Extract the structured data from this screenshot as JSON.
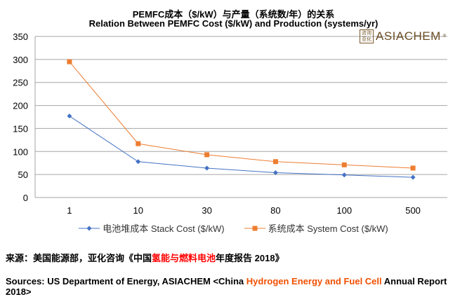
{
  "title_cn": "PEMFC成本（$/kW）与产量（系统数/年）的关系",
  "title_en": "Relation Between PEMFC Cost ($/kW) and Production (systems/yr)",
  "logo": {
    "seal": "咨询亚化",
    "name": "ASIACHEM",
    "mark": "®"
  },
  "chart_data": {
    "type": "line",
    "categories": [
      "1",
      "10",
      "30",
      "80",
      "100",
      "500"
    ],
    "ylim": [
      0,
      350
    ],
    "yticks": [
      0,
      50,
      100,
      150,
      200,
      250,
      300,
      350
    ],
    "grid": true,
    "legend": "bottom",
    "series": [
      {
        "name": "电池堆成本 Stack Cost ($/kW)",
        "values": [
          177,
          78,
          64,
          54,
          49,
          44
        ],
        "color": "#4472c4",
        "marker": "diamond"
      },
      {
        "name": "系统成本 System Cost ($/kW)",
        "values": [
          295,
          117,
          93,
          78,
          71,
          64
        ],
        "color": "#ed7d31",
        "marker": "square"
      }
    ]
  },
  "source_cn": {
    "a": "来源：美国能源部，亚化咨询《中国",
    "b": "氢能与燃料电池",
    "c": "年度报告 2018》"
  },
  "source_en": {
    "a": "Sources: US Department of Energy, ASIACHEM <China ",
    "b": "Hydrogen Energy and Fuel Cell",
    "c": " Annual Report 2018>"
  }
}
